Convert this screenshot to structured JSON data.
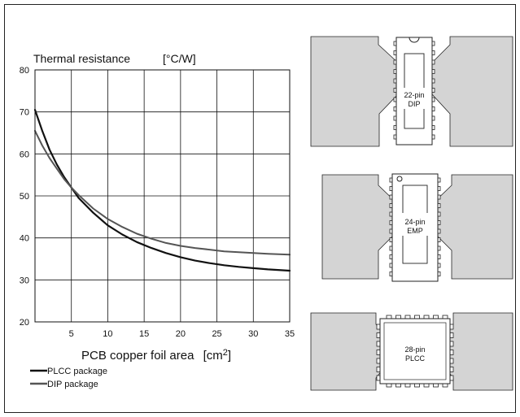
{
  "chart_data": {
    "type": "line",
    "ylabel": "Thermal resistance",
    "yunit": "[°C/W]",
    "xlabel": "PCB copper foil area",
    "xunit": "[cm",
    "xunit_sup": "2",
    "xunit_close": "]",
    "xlim": [
      0,
      35
    ],
    "ylim": [
      20,
      80
    ],
    "xticks": [
      5,
      10,
      15,
      20,
      25,
      30,
      35
    ],
    "yticks": [
      20,
      30,
      40,
      50,
      60,
      70,
      80
    ],
    "grid": true,
    "legend_position": "bottom-left",
    "series": [
      {
        "name": "PLCC package",
        "color": "#111111",
        "x": [
          0,
          1,
          2,
          3,
          4,
          5,
          6,
          8,
          10,
          12,
          14,
          16,
          18,
          20,
          22,
          24,
          26,
          28,
          30,
          32,
          35
        ],
        "y": [
          70.5,
          65.5,
          61,
          57.5,
          54.5,
          52,
          49.5,
          46,
          43,
          40.8,
          39,
          37.6,
          36.4,
          35.4,
          34.6,
          34,
          33.5,
          33.1,
          32.8,
          32.5,
          32.2
        ]
      },
      {
        "name": "DIP package",
        "color": "#555555",
        "x": [
          0,
          1,
          2,
          3,
          4,
          5,
          6,
          8,
          10,
          12,
          14,
          16,
          18,
          20,
          22,
          24,
          26,
          28,
          30,
          32,
          35
        ],
        "y": [
          65.5,
          62,
          59,
          56.5,
          54,
          52,
          50.2,
          47,
          44.5,
          42.6,
          41,
          39.8,
          38.8,
          38.1,
          37.6,
          37.2,
          36.8,
          36.6,
          36.4,
          36.2,
          36
        ]
      }
    ]
  },
  "package_labels": [
    {
      "line1": "22-pin",
      "line2": "DIP"
    },
    {
      "line1": "24-pin",
      "line2": "EMP"
    },
    {
      "line1": "28-pin",
      "line2": "PLCC"
    }
  ]
}
